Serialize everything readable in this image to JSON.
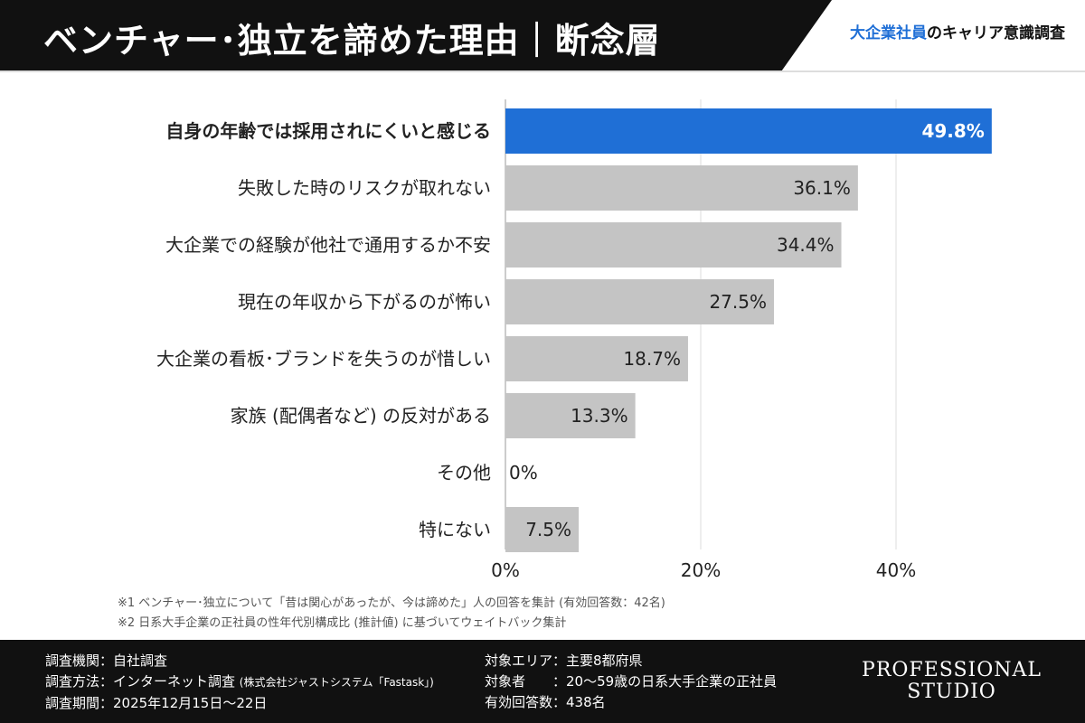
{
  "header": {
    "title": "ベンチャー･独立を諦めた理由｜断念層",
    "brand_highlight": "大企業社員",
    "brand_rest": "のキャリア意識調査"
  },
  "colors": {
    "highlight": "#1f6fd6",
    "bar": "#c4c4c4",
    "header_bg": "#111111"
  },
  "chart_data": {
    "type": "bar",
    "orientation": "horizontal",
    "categories": [
      "自身の年齢では採用されにくいと感じる",
      "失敗した時のリスクが取れない",
      "大企業での経験が他社で通用するか不安",
      "現在の年収から下がるのが怖い",
      "大企業の看板･ブランドを失うのが惜しい",
      "家族 (配偶者など) の反対がある",
      "その他",
      "特にない"
    ],
    "values": [
      49.8,
      36.1,
      34.4,
      27.5,
      18.7,
      13.3,
      0,
      7.5
    ],
    "labels": [
      "49.8%",
      "36.1%",
      "34.4%",
      "27.5%",
      "18.7%",
      "13.3%",
      "0%",
      "7.5%"
    ],
    "highlight_index": 0,
    "xlim": [
      0,
      50
    ],
    "xticks": [
      0,
      20,
      40
    ],
    "xtick_labels": [
      "0%",
      "20%",
      "40%"
    ],
    "grid": true
  },
  "notes": [
    "※1 ベンチャー･独立について「昔は関心があったが、今は諦めた」人の回答を集計 (有効回答数：42名)",
    "※2 日系大手企業の正社員の性年代別構成比 (推計値) に基づいてウェイトバック集計"
  ],
  "footer": {
    "left": [
      "調査機関：自社調査",
      "調査方法：インターネット調査",
      "調査期間：2025年12月15日〜22日"
    ],
    "method_note": "(株式会社ジャストシステム「Fastask」)",
    "right": [
      "対象エリア：主要8都府県",
      "対象者　　：20〜59歳の日系大手企業の正社員",
      "有効回答数：438名"
    ],
    "logo": [
      "PROFESSIONAL",
      "STUDIO"
    ]
  }
}
